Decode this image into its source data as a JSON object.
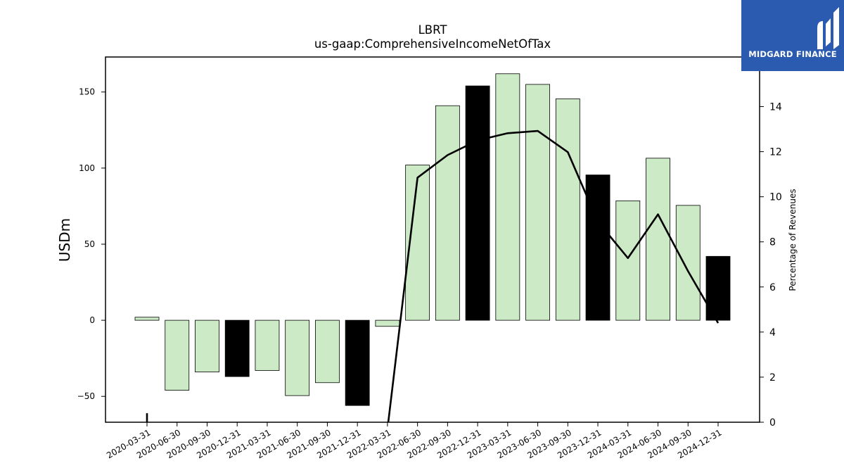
{
  "chart_data": {
    "type": "bar",
    "title": "LBRT",
    "subtitle": "us-gaap:ComprehensiveIncomeNetOfTax",
    "ylabel": "USDm",
    "y2label": "Percentage of Revenues",
    "ylim": [
      -67,
      173
    ],
    "y2lim": [
      0,
      16.2
    ],
    "yticks": [
      -50,
      0,
      50,
      100,
      150
    ],
    "y2ticks": [
      0,
      2,
      4,
      6,
      8,
      10,
      12,
      14
    ],
    "grid": false,
    "categories": [
      "2020-03-31",
      "2020-06-30",
      "2020-09-30",
      "2020-12-31",
      "2021-03-31",
      "2021-06-30",
      "2021-09-30",
      "2021-12-31",
      "2022-03-31",
      "2022-06-30",
      "2022-09-30",
      "2022-12-31",
      "2023-03-31",
      "2023-06-30",
      "2023-09-30",
      "2023-12-31",
      "2024-03-31",
      "2024-06-30",
      "2024-09-30",
      "2024-12-31"
    ],
    "series": [
      {
        "type": "bar",
        "axis": "left",
        "values": [
          2,
          -46,
          -34,
          -37,
          -33,
          -49.5,
          -41,
          -56,
          -4,
          102,
          141,
          154,
          162,
          155,
          145.5,
          95.5,
          78.5,
          106.5,
          75.5,
          42
        ],
        "colors": [
          "#cdeac6",
          "#cdeac6",
          "#cdeac6",
          "#000000",
          "#cdeac6",
          "#cdeac6",
          "#cdeac6",
          "#000000",
          "#cdeac6",
          "#cdeac6",
          "#cdeac6",
          "#000000",
          "#cdeac6",
          "#cdeac6",
          "#cdeac6",
          "#000000",
          "#cdeac6",
          "#cdeac6",
          "#cdeac6",
          "#000000"
        ]
      },
      {
        "type": "line",
        "axis": "right",
        "color": "#000000",
        "values": [
          0.4,
          null,
          null,
          null,
          null,
          null,
          null,
          null,
          -0.3,
          10.85,
          11.85,
          12.5,
          12.82,
          12.92,
          11.98,
          8.9,
          7.28,
          9.22,
          6.7,
          4.4
        ]
      }
    ]
  },
  "logo": {
    "text": "MIDGARD FINANCE",
    "bg_color": "#2b5bb0"
  }
}
